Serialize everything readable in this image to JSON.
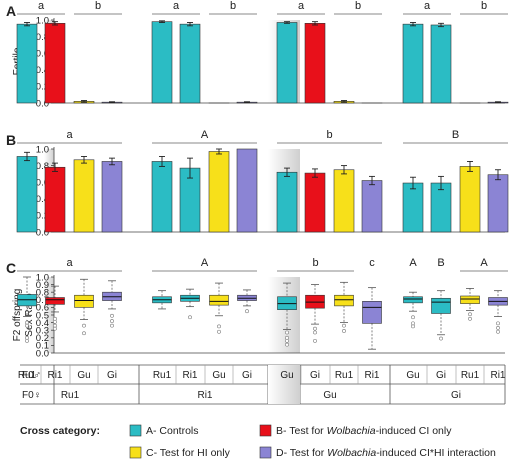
{
  "chart_data": [
    {
      "panel": "A",
      "type": "bar",
      "ylabel": "Fertile\nF1 daughters",
      "ylim": [
        0,
        1.0
      ],
      "yticks": [
        "0.0",
        "0.2",
        "0.4",
        "0.6",
        "0.8",
        "1.0"
      ],
      "groups": [
        {
          "bars": [
            {
              "cat": "A",
              "value": 0.95,
              "err": 0.02
            },
            {
              "cat": "B",
              "value": 0.96,
              "err": 0.02
            },
            {
              "cat": "C",
              "value": 0.02,
              "err": 0.01
            },
            {
              "cat": "D",
              "value": 0.01,
              "err": 0.005
            }
          ]
        },
        {
          "bars": [
            {
              "cat": "A",
              "value": 0.98,
              "err": 0.01
            },
            {
              "cat": "A",
              "value": 0.95,
              "err": 0.02
            },
            {
              "cat": "D",
              "value": 0.0,
              "err": 0.0
            },
            {
              "cat": "D",
              "value": 0.01,
              "err": 0.005
            }
          ]
        },
        {
          "bars": [
            {
              "cat": "A",
              "value": 0.97,
              "err": 0.01
            },
            {
              "cat": "B",
              "value": 0.96,
              "err": 0.02
            },
            {
              "cat": "C",
              "value": 0.02,
              "err": 0.01
            },
            {
              "cat": "D",
              "value": 0.0,
              "err": 0.0
            }
          ]
        },
        {
          "bars": [
            {
              "cat": "A",
              "value": 0.95,
              "err": 0.02
            },
            {
              "cat": "A",
              "value": 0.94,
              "err": 0.02
            },
            {
              "cat": "D",
              "value": 0.0,
              "err": 0.0
            },
            {
              "cat": "D",
              "value": 0.01,
              "err": 0.005
            }
          ]
        }
      ],
      "sig": [
        {
          "label": "a",
          "from": [
            0,
            0
          ],
          "to": [
            0,
            1
          ]
        },
        {
          "label": "b",
          "from": [
            0,
            2
          ],
          "to": [
            0,
            3
          ]
        },
        {
          "label": "a",
          "from": [
            1,
            0
          ],
          "to": [
            1,
            1
          ]
        },
        {
          "label": "b",
          "from": [
            1,
            2
          ],
          "to": [
            1,
            3
          ]
        },
        {
          "label": "a",
          "from": [
            2,
            0
          ],
          "to": [
            2,
            1
          ]
        },
        {
          "label": "b",
          "from": [
            2,
            2
          ],
          "to": [
            2,
            3
          ]
        },
        {
          "label": "a",
          "from": [
            3,
            0
          ],
          "to": [
            3,
            1
          ]
        },
        {
          "label": "b",
          "from": [
            3,
            2
          ],
          "to": [
            3,
            3
          ]
        }
      ]
    },
    {
      "panel": "B",
      "type": "bar",
      "ylabel": "Fertile F1 sons",
      "ylim": [
        0,
        1.0
      ],
      "yticks": [
        "0.0",
        "0.2",
        "0.4",
        "0.6",
        "0.8",
        "1.0"
      ],
      "groups": [
        {
          "bars": [
            {
              "cat": "A",
              "value": 0.91,
              "err": 0.05
            },
            {
              "cat": "B",
              "value": 0.78,
              "err": 0.05
            },
            {
              "cat": "C",
              "value": 0.87,
              "err": 0.04
            },
            {
              "cat": "D",
              "value": 0.85,
              "err": 0.04
            }
          ]
        },
        {
          "bars": [
            {
              "cat": "A",
              "value": 0.85,
              "err": 0.06
            },
            {
              "cat": "A",
              "value": 0.77,
              "err": 0.12
            },
            {
              "cat": "C",
              "value": 0.97,
              "err": 0.03
            },
            {
              "cat": "D",
              "value": 1.0,
              "err": 0.0
            }
          ]
        },
        {
          "bars": [
            {
              "cat": "A",
              "value": 0.72,
              "err": 0.05
            },
            {
              "cat": "B",
              "value": 0.71,
              "err": 0.05
            },
            {
              "cat": "C",
              "value": 0.75,
              "err": 0.05
            },
            {
              "cat": "D",
              "value": 0.62,
              "err": 0.05
            }
          ]
        },
        {
          "bars": [
            {
              "cat": "A",
              "value": 0.59,
              "err": 0.07
            },
            {
              "cat": "A",
              "value": 0.59,
              "err": 0.08
            },
            {
              "cat": "C",
              "value": 0.79,
              "err": 0.06
            },
            {
              "cat": "D",
              "value": 0.69,
              "err": 0.06
            }
          ]
        }
      ],
      "sig": [
        {
          "label": "a",
          "from": [
            0,
            0
          ],
          "to": [
            0,
            3
          ]
        },
        {
          "label": "A",
          "from": [
            1,
            0
          ],
          "to": [
            1,
            3
          ]
        },
        {
          "label": "b",
          "from": [
            2,
            0
          ],
          "to": [
            2,
            3
          ]
        },
        {
          "label": "B",
          "from": [
            3,
            0
          ],
          "to": [
            3,
            3
          ]
        }
      ]
    },
    {
      "panel": "C",
      "type": "box",
      "ylabel": "F2 offspring\nSex Ratio",
      "ylim": [
        0,
        1.0
      ],
      "yticks": [
        "0.0",
        "0.1",
        "0.2",
        "0.3",
        "0.4",
        "0.5",
        "0.6",
        "0.7",
        "0.8",
        "0.9",
        "1.0"
      ],
      "groups": [
        {
          "boxes": [
            {
              "cat": "A",
              "min": 0.48,
              "q1": 0.62,
              "median": 0.7,
              "q3": 0.77,
              "max": 1.0,
              "outliers": [
                0.4,
                0.36,
                0.2,
                0.16
              ]
            },
            {
              "cat": "B",
              "min": 0.54,
              "q1": 0.64,
              "median": 0.7,
              "q3": 0.73,
              "max": 0.88,
              "outliers": [
                0.45,
                0.41,
                0.36,
                0.32
              ]
            },
            {
              "cat": "C",
              "min": 0.44,
              "q1": 0.6,
              "median": 0.69,
              "q3": 0.76,
              "max": 0.97,
              "outliers": [
                0.36,
                0.26
              ]
            },
            {
              "cat": "D",
              "min": 0.58,
              "q1": 0.69,
              "median": 0.74,
              "q3": 0.8,
              "max": 0.95,
              "outliers": [
                0.49,
                0.42,
                0.36
              ]
            }
          ]
        },
        {
          "boxes": [
            {
              "cat": "A",
              "min": 0.58,
              "q1": 0.66,
              "median": 0.7,
              "q3": 0.74,
              "max": 0.82
            },
            {
              "cat": "A",
              "min": 0.61,
              "q1": 0.68,
              "median": 0.72,
              "q3": 0.76,
              "max": 0.84,
              "outliers": [
                0.47
              ]
            },
            {
              "cat": "C",
              "min": 0.49,
              "q1": 0.63,
              "median": 0.68,
              "q3": 0.76,
              "max": 0.92,
              "outliers": [
                0.35,
                0.28
              ]
            },
            {
              "cat": "D",
              "min": 0.62,
              "q1": 0.69,
              "median": 0.72,
              "q3": 0.76,
              "max": 0.83,
              "outliers": [
                0.55
              ]
            }
          ]
        },
        {
          "boxes": [
            {
              "cat": "A",
              "min": 0.31,
              "q1": 0.57,
              "median": 0.65,
              "q3": 0.74,
              "max": 0.92,
              "outliers": [
                0.27,
                0.2,
                0.16,
                0.11
              ]
            },
            {
              "cat": "B",
              "min": 0.38,
              "q1": 0.59,
              "median": 0.67,
              "q3": 0.76,
              "max": 0.9,
              "outliers": [
                0.32,
                0.27,
                0.16
              ]
            },
            {
              "cat": "C",
              "min": 0.4,
              "q1": 0.62,
              "median": 0.7,
              "q3": 0.76,
              "max": 0.93,
              "outliers": [
                0.36,
                0.29
              ]
            },
            {
              "cat": "D",
              "min": 0.05,
              "q1": 0.39,
              "median": 0.6,
              "q3": 0.68,
              "max": 0.86
            }
          ]
        },
        {
          "boxes": [
            {
              "cat": "A",
              "min": 0.55,
              "q1": 0.66,
              "median": 0.71,
              "q3": 0.74,
              "max": 0.8,
              "outliers": [
                0.47,
                0.39,
                0.35
              ]
            },
            {
              "cat": "A",
              "min": 0.24,
              "q1": 0.52,
              "median": 0.67,
              "q3": 0.72,
              "max": 0.82,
              "outliers": [
                0.19
              ]
            },
            {
              "cat": "C",
              "min": 0.56,
              "q1": 0.65,
              "median": 0.71,
              "q3": 0.75,
              "max": 0.85,
              "outliers": [
                0.51,
                0.45
              ]
            },
            {
              "cat": "D",
              "min": 0.48,
              "q1": 0.63,
              "median": 0.68,
              "q3": 0.73,
              "max": 0.82,
              "outliers": [
                0.39,
                0.33,
                0.28
              ]
            }
          ]
        }
      ],
      "sig": [
        {
          "label": "a",
          "from": [
            0,
            0
          ],
          "to": [
            0,
            3
          ]
        },
        {
          "label": "A",
          "from": [
            1,
            0
          ],
          "to": [
            1,
            3
          ]
        },
        {
          "label": "b",
          "from": [
            2,
            0
          ],
          "to": [
            2,
            2
          ]
        },
        {
          "label": "c",
          "from": [
            2,
            3
          ],
          "to": [
            2,
            3
          ],
          "nobar": true
        },
        {
          "label": "A",
          "from": [
            3,
            0
          ],
          "to": [
            3,
            0
          ],
          "nobar": true
        },
        {
          "label": "B",
          "from": [
            3,
            1
          ],
          "to": [
            3,
            1
          ],
          "nobar": true
        },
        {
          "label": "A",
          "from": [
            3,
            2
          ],
          "to": [
            3,
            3
          ]
        }
      ]
    }
  ],
  "panel_letters": [
    "A",
    "B",
    "C"
  ],
  "cross_table": {
    "male_label": "F0♂",
    "female_label": "F0♀",
    "groups": [
      {
        "male": [
          "Ru1",
          "Ri1",
          "Gu",
          "Gi"
        ],
        "female": "Ru1"
      },
      {
        "male": [
          "Ru1",
          "Ri1",
          "Gu",
          "Gi"
        ],
        "female": "Ri1"
      },
      {
        "male": [
          "Gu",
          "Gi",
          "Ru1",
          "Ri1"
        ],
        "female": "Gu"
      },
      {
        "male": [
          "Gu",
          "Gi",
          "Ru1",
          "Ri1"
        ],
        "female": "Gi"
      }
    ]
  },
  "legend": {
    "title": "Cross category:",
    "items": [
      {
        "cat": "A",
        "label": "A- Controls",
        "color": "#2bbcc4"
      },
      {
        "cat": "B",
        "label_pre": "B- Test for ",
        "label_ital": "Wolbachia",
        "label_post": "-induced CI only",
        "color": "#e8101a"
      },
      {
        "cat": "C",
        "label": "C- Test for HI only",
        "color": "#f7e01a"
      },
      {
        "cat": "D",
        "label_pre": "D- Test for ",
        "label_ital": "Wolbachia",
        "label_post": "-induced CI*HI interaction",
        "color": "#8b84d4"
      }
    ]
  },
  "colors": {
    "A": "#2bbcc4",
    "B": "#e8101a",
    "C": "#f7e01a",
    "D": "#8b84d4"
  }
}
